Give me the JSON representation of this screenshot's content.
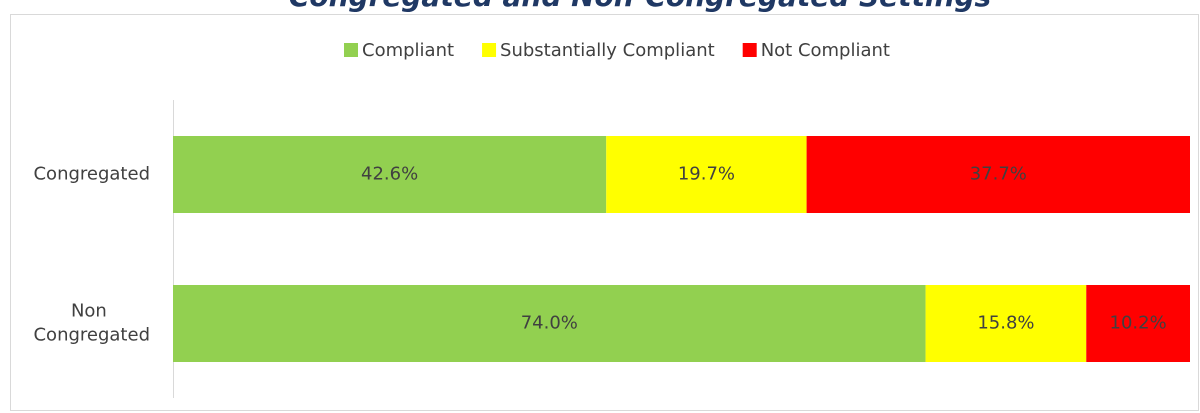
{
  "chart_data": {
    "type": "stacked_barh",
    "title": "Congregated and Non-Congregated Settings",
    "categories": [
      "Congregated",
      "Non Congregated"
    ],
    "series": [
      {
        "name": "Compliant",
        "color": "#92d050",
        "values": [
          42.6,
          74.0
        ],
        "value_labels": [
          "42.6%",
          "74.0%"
        ]
      },
      {
        "name": "Substantially Compliant",
        "color": "#ffff00",
        "values": [
          19.7,
          15.8
        ],
        "value_labels": [
          "19.7%",
          "15.8%"
        ]
      },
      {
        "name": "Not Compliant",
        "color": "#ff0000",
        "values": [
          37.7,
          10.2
        ],
        "value_labels": [
          "37.7%",
          "10.2%"
        ]
      }
    ],
    "xlim": [
      0,
      100
    ],
    "legend": "top"
  }
}
